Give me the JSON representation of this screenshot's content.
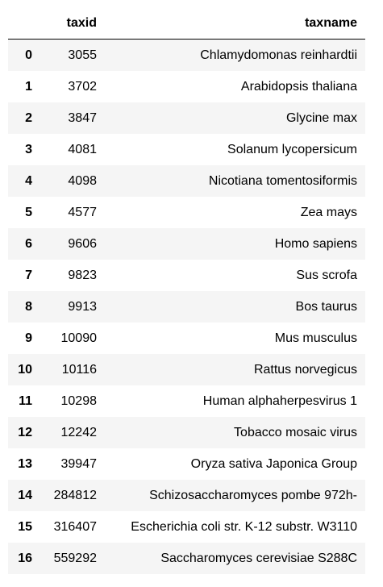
{
  "table": {
    "index_header": "",
    "columns": [
      "taxid",
      "taxname"
    ],
    "rows": [
      {
        "index": "0",
        "taxid": "3055",
        "taxname": "Chlamydomonas reinhardtii"
      },
      {
        "index": "1",
        "taxid": "3702",
        "taxname": "Arabidopsis thaliana"
      },
      {
        "index": "2",
        "taxid": "3847",
        "taxname": "Glycine max"
      },
      {
        "index": "3",
        "taxid": "4081",
        "taxname": "Solanum lycopersicum"
      },
      {
        "index": "4",
        "taxid": "4098",
        "taxname": "Nicotiana tomentosiformis"
      },
      {
        "index": "5",
        "taxid": "4577",
        "taxname": "Zea mays"
      },
      {
        "index": "6",
        "taxid": "9606",
        "taxname": "Homo sapiens"
      },
      {
        "index": "7",
        "taxid": "9823",
        "taxname": "Sus scrofa"
      },
      {
        "index": "8",
        "taxid": "9913",
        "taxname": "Bos taurus"
      },
      {
        "index": "9",
        "taxid": "10090",
        "taxname": "Mus musculus"
      },
      {
        "index": "10",
        "taxid": "10116",
        "taxname": "Rattus norvegicus"
      },
      {
        "index": "11",
        "taxid": "10298",
        "taxname": "Human alphaherpesvirus 1"
      },
      {
        "index": "12",
        "taxid": "12242",
        "taxname": "Tobacco mosaic virus"
      },
      {
        "index": "13",
        "taxid": "39947",
        "taxname": "Oryza sativa Japonica Group"
      },
      {
        "index": "14",
        "taxid": "284812",
        "taxname": "Schizosaccharomyces pombe 972h-"
      },
      {
        "index": "15",
        "taxid": "316407",
        "taxname": "Escherichia coli str. K-12 substr. W3110"
      },
      {
        "index": "16",
        "taxid": "559292",
        "taxname": "Saccharomyces cerevisiae S288C"
      }
    ]
  },
  "colors": {
    "stripe": "#f5f5f5",
    "header_rule": "#000000",
    "text": "#000000"
  }
}
